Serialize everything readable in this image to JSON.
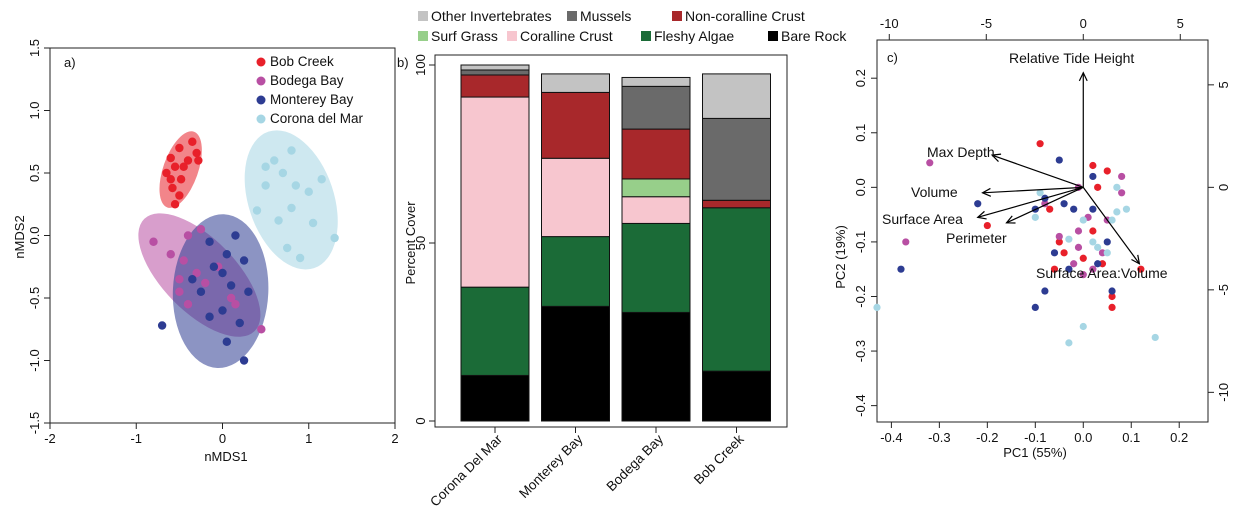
{
  "chart_data": [
    {
      "type": "scatter",
      "panel_label": "a)",
      "xlabel": "nMDS1",
      "ylabel": "nMDS2",
      "xlim": [
        -2,
        2
      ],
      "ylim": [
        -1.5,
        1.5
      ],
      "xticks": [
        "-2",
        "-1",
        "0",
        "1",
        "2"
      ],
      "yticks": [
        "-1.5",
        "-1.0",
        "-0.5",
        "0.0",
        "0.5",
        "1.0",
        "1.5"
      ],
      "legend": [
        "Bob Creek",
        "Bodega Bay",
        "Monterey Bay",
        "Corona del Mar"
      ],
      "colors": {
        "Bob Creek": "#e8202a",
        "Bodega Bay": "#b84fa3",
        "Monterey Bay": "#2d3c92",
        "Corona del Mar": "#a6d6e4"
      },
      "series": [
        {
          "name": "Bob Creek",
          "points": [
            [
              -0.35,
              0.75
            ],
            [
              -0.5,
              0.7
            ],
            [
              -0.3,
              0.66
            ],
            [
              -0.6,
              0.62
            ],
            [
              -0.4,
              0.6
            ],
            [
              -0.28,
              0.6
            ],
            [
              -0.55,
              0.55
            ],
            [
              -0.45,
              0.55
            ],
            [
              -0.65,
              0.5
            ],
            [
              -0.6,
              0.45
            ],
            [
              -0.48,
              0.45
            ],
            [
              -0.58,
              0.38
            ],
            [
              -0.5,
              0.32
            ],
            [
              -0.55,
              0.25
            ]
          ]
        },
        {
          "name": "Bodega Bay",
          "points": [
            [
              -0.8,
              -0.05
            ],
            [
              -0.25,
              0.05
            ],
            [
              -0.4,
              0.0
            ],
            [
              -0.6,
              -0.15
            ],
            [
              -0.45,
              -0.2
            ],
            [
              -0.3,
              -0.3
            ],
            [
              -0.5,
              -0.35
            ],
            [
              -0.2,
              -0.38
            ],
            [
              -0.05,
              -0.25
            ],
            [
              0.1,
              -0.5
            ],
            [
              0.15,
              -0.55
            ],
            [
              0.45,
              -0.75
            ],
            [
              -0.4,
              -0.55
            ],
            [
              -0.5,
              -0.45
            ]
          ]
        },
        {
          "name": "Monterey Bay",
          "points": [
            [
              0.15,
              0.0
            ],
            [
              -0.15,
              -0.05
            ],
            [
              0.05,
              -0.15
            ],
            [
              -0.1,
              -0.25
            ],
            [
              0.0,
              -0.3
            ],
            [
              0.25,
              -0.2
            ],
            [
              -0.25,
              -0.45
            ],
            [
              0.1,
              -0.4
            ],
            [
              0.3,
              -0.45
            ],
            [
              0.0,
              -0.6
            ],
            [
              -0.15,
              -0.65
            ],
            [
              0.2,
              -0.7
            ],
            [
              -0.7,
              -0.72
            ],
            [
              0.05,
              -0.85
            ],
            [
              0.25,
              -1.0
            ],
            [
              -0.35,
              -0.35
            ]
          ]
        },
        {
          "name": "Corona del Mar",
          "points": [
            [
              0.8,
              0.68
            ],
            [
              0.6,
              0.6
            ],
            [
              0.5,
              0.55
            ],
            [
              0.7,
              0.5
            ],
            [
              1.15,
              0.45
            ],
            [
              0.5,
              0.4
            ],
            [
              0.85,
              0.4
            ],
            [
              1.0,
              0.35
            ],
            [
              0.4,
              0.2
            ],
            [
              0.8,
              0.22
            ],
            [
              0.65,
              0.12
            ],
            [
              1.05,
              0.1
            ],
            [
              1.3,
              -0.02
            ],
            [
              0.75,
              -0.1
            ],
            [
              0.9,
              -0.18
            ]
          ]
        }
      ]
    },
    {
      "type": "bar",
      "stacked": true,
      "panel_label": "b)",
      "ylabel": "Percent Cover",
      "ylim": [
        0,
        100
      ],
      "yticks": [
        "0",
        "50",
        "100"
      ],
      "categories": [
        "Corona Del Mar",
        "Monterey Bay",
        "Bodega Bay",
        "Bob Creek"
      ],
      "legend_order": [
        "Other Invertebrates",
        "Mussels",
        "Non-coralline Crust",
        "Surf Grass",
        "Coralline Crust",
        "Fleshy Algae",
        "Bare Rock"
      ],
      "series": [
        {
          "name": "Bare Rock",
          "color": "#000000",
          "values": [
            12.8,
            32.2,
            30.5,
            14.0
          ]
        },
        {
          "name": "Fleshy Algae",
          "color": "#1b6b37",
          "values": [
            24.8,
            19.6,
            25.0,
            45.9
          ]
        },
        {
          "name": "Coralline Crust",
          "color": "#f7c6cf",
          "values": [
            53.4,
            22.0,
            7.5,
            0.0
          ]
        },
        {
          "name": "Surf Grass",
          "color": "#97cf8a",
          "values": [
            0.0,
            0.0,
            5.0,
            0.0
          ]
        },
        {
          "name": "Non-coralline Crust",
          "color": "#a8282b",
          "values": [
            6.2,
            18.5,
            14.0,
            2.1
          ]
        },
        {
          "name": "Mussels",
          "color": "#6a6a6a",
          "values": [
            1.4,
            0.0,
            12.0,
            23.0
          ]
        },
        {
          "name": "Other Invertebrates",
          "color": "#c3c3c3",
          "values": [
            1.4,
            5.2,
            2.5,
            12.5
          ]
        }
      ]
    },
    {
      "type": "scatter",
      "subtype": "biplot",
      "panel_label": "c)",
      "xlabel": "PC1 (55%)",
      "ylabel": "PC2 (19%)",
      "xlim": [
        -0.43,
        0.26
      ],
      "ylim": [
        -0.43,
        0.27
      ],
      "xticks": [
        "-0.4",
        "-0.3",
        "-0.2",
        "-0.1",
        "0.0",
        "0.1",
        "0.2"
      ],
      "yticks": [
        "-0.4",
        "-0.3",
        "-0.2",
        "-0.1",
        "0.0",
        "0.1",
        "0.2"
      ],
      "top_ticks": [
        "-10",
        "-5",
        "0",
        "5"
      ],
      "right_ticks": [
        "-10",
        "-5",
        "0",
        "5"
      ],
      "vectors": [
        {
          "label": "Relative Tide Height",
          "x": 0.0,
          "y": 0.21
        },
        {
          "label": "Max Depth",
          "x": -0.19,
          "y": 0.059
        },
        {
          "label": "Volume",
          "x": -0.21,
          "y": -0.01
        },
        {
          "label": "Surface Area",
          "x": -0.22,
          "y": -0.055
        },
        {
          "label": "Perimeter",
          "x": -0.16,
          "y": -0.065
        },
        {
          "label": "Surface Area:Volume",
          "x": 0.117,
          "y": -0.14
        }
      ],
      "series": [
        {
          "name": "Bob Creek",
          "color": "#e8202a",
          "points": [
            [
              -0.09,
              0.08
            ],
            [
              -0.2,
              -0.07
            ],
            [
              0.02,
              0.04
            ],
            [
              0.05,
              0.03
            ],
            [
              0.03,
              0.0
            ],
            [
              -0.05,
              -0.1
            ],
            [
              -0.07,
              -0.04
            ],
            [
              -0.04,
              -0.12
            ],
            [
              0.06,
              -0.22
            ],
            [
              -0.06,
              -0.15
            ],
            [
              0.12,
              -0.15
            ],
            [
              0.04,
              -0.14
            ],
            [
              0.02,
              -0.08
            ],
            [
              0.0,
              -0.13
            ],
            [
              0.06,
              -0.2
            ]
          ]
        },
        {
          "name": "Bodega Bay",
          "color": "#b84fa3",
          "points": [
            [
              -0.32,
              0.045
            ],
            [
              -0.37,
              -0.1
            ],
            [
              -0.01,
              0.0
            ],
            [
              0.08,
              0.02
            ],
            [
              0.08,
              -0.01
            ],
            [
              0.05,
              -0.06
            ],
            [
              -0.08,
              -0.03
            ],
            [
              0.01,
              -0.055
            ],
            [
              -0.01,
              -0.11
            ],
            [
              -0.02,
              -0.14
            ],
            [
              0.04,
              -0.12
            ],
            [
              -0.01,
              -0.08
            ],
            [
              0.02,
              -0.15
            ],
            [
              0.0,
              -0.16
            ],
            [
              -0.05,
              -0.09
            ]
          ]
        },
        {
          "name": "Monterey Bay",
          "color": "#2d3c92",
          "points": [
            [
              -0.22,
              -0.03
            ],
            [
              -0.05,
              0.05
            ],
            [
              0.02,
              0.02
            ],
            [
              -0.08,
              -0.02
            ],
            [
              -0.04,
              -0.03
            ],
            [
              0.02,
              -0.04
            ],
            [
              0.05,
              -0.1
            ],
            [
              -0.02,
              -0.04
            ],
            [
              -0.06,
              -0.12
            ],
            [
              0.03,
              -0.14
            ],
            [
              -0.38,
              -0.15
            ],
            [
              -0.08,
              -0.19
            ],
            [
              -0.1,
              -0.22
            ],
            [
              0.06,
              -0.19
            ],
            [
              -0.03,
              -0.15
            ],
            [
              -0.1,
              -0.04
            ]
          ]
        },
        {
          "name": "Corona del Mar",
          "color": "#a6d6e4",
          "points": [
            [
              -0.43,
              -0.22
            ],
            [
              -0.1,
              -0.055
            ],
            [
              -0.09,
              -0.01
            ],
            [
              0.07,
              0.0
            ],
            [
              0.06,
              -0.06
            ],
            [
              0.05,
              -0.12
            ],
            [
              0.02,
              -0.1
            ],
            [
              0.0,
              -0.06
            ],
            [
              0.09,
              -0.04
            ],
            [
              0.03,
              -0.11
            ],
            [
              -0.03,
              -0.095
            ],
            [
              0.0,
              -0.255
            ],
            [
              -0.03,
              -0.285
            ],
            [
              0.15,
              -0.275
            ],
            [
              0.07,
              -0.045
            ]
          ]
        }
      ]
    }
  ]
}
